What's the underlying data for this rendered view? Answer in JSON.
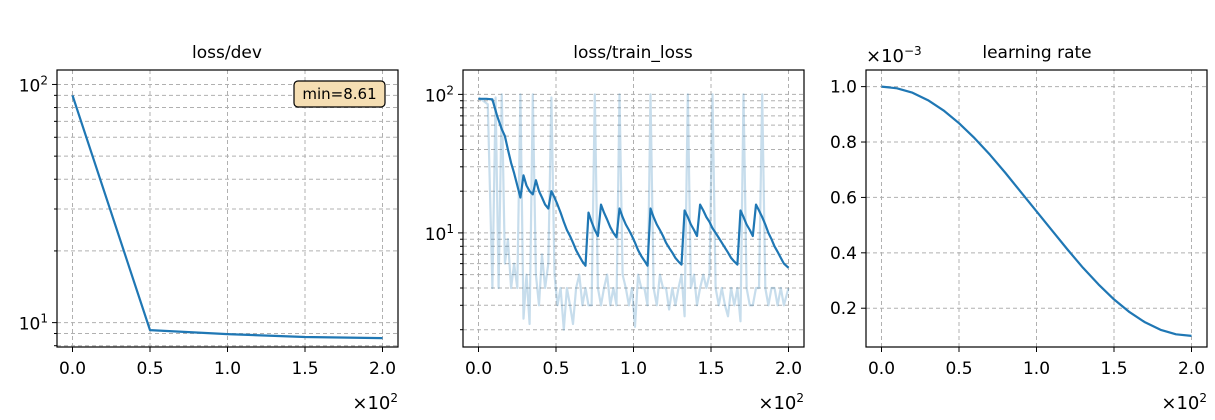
{
  "chart_data": [
    {
      "type": "line",
      "title": "loss/dev",
      "yscale": "log",
      "ylim": [
        7.9,
        115
      ],
      "xlim": [
        -10,
        210
      ],
      "x_multiplier": "×10",
      "x_multiplier_exp": "2",
      "x_ticks": [
        0,
        50,
        100,
        150,
        200
      ],
      "x_tick_labels": [
        "0.0",
        "0.5",
        "1.0",
        "1.5",
        "2.0"
      ],
      "y_major_ticks": [
        10,
        100
      ],
      "y_tick_labels_base": [
        "10",
        "10"
      ],
      "y_tick_labels_exp": [
        "1",
        "2"
      ],
      "y_minor_ticks": [
        8,
        9,
        20,
        30,
        40,
        50,
        60,
        70,
        80,
        90
      ],
      "grid": true,
      "annotation": "min=8.61",
      "annotation_position": "top-right",
      "series": [
        {
          "color": "#1f77b4",
          "x": [
            0,
            50,
            100,
            150,
            200
          ],
          "y": [
            90,
            9.3,
            8.95,
            8.7,
            8.61
          ]
        }
      ]
    },
    {
      "type": "line",
      "title": "loss/train_loss",
      "yscale": "log",
      "ylim": [
        1.5,
        150
      ],
      "xlim": [
        -10,
        210
      ],
      "x_multiplier": "×10",
      "x_multiplier_exp": "2",
      "x_ticks": [
        0,
        50,
        100,
        150,
        200
      ],
      "x_tick_labels": [
        "0.0",
        "0.5",
        "1.0",
        "1.5",
        "2.0"
      ],
      "y_major_ticks": [
        10,
        100
      ],
      "y_tick_labels_base": [
        "10",
        "10"
      ],
      "y_tick_labels_exp": [
        "1",
        "2"
      ],
      "y_minor_ticks": [
        2,
        3,
        4,
        5,
        6,
        7,
        8,
        9,
        20,
        30,
        40,
        50,
        60,
        70,
        80,
        90
      ],
      "grid": true,
      "series": [
        {
          "color": "#1f77b4",
          "opacity": 0.25,
          "x": [
            0,
            3,
            6,
            9,
            11,
            13,
            15,
            17,
            19,
            21,
            23,
            25,
            27,
            29,
            31,
            33,
            35,
            37,
            39,
            41,
            43,
            45,
            47,
            49,
            51,
            53,
            55,
            57,
            59,
            61,
            63,
            65,
            67,
            69,
            71,
            73,
            75,
            77,
            79,
            81,
            83,
            85,
            87,
            89,
            91,
            93,
            95,
            97,
            99,
            101,
            103,
            105,
            107,
            109,
            111,
            113,
            115,
            117,
            119,
            121,
            123,
            125,
            127,
            129,
            131,
            133,
            135,
            137,
            139,
            141,
            143,
            145,
            147,
            149,
            151,
            153,
            155,
            157,
            159,
            161,
            163,
            165,
            167,
            169,
            171,
            173,
            175,
            177,
            179,
            181,
            183,
            185,
            187,
            189,
            191,
            193,
            195,
            197,
            200
          ],
          "y": [
            95,
            90,
            85,
            4,
            95,
            4,
            100,
            6,
            9,
            4,
            6,
            4,
            100,
            2.4,
            5,
            2.2,
            100,
            5,
            3,
            7,
            4,
            6,
            95,
            5,
            3,
            4,
            2,
            4,
            3,
            2.2,
            4,
            5,
            3,
            4,
            3,
            3,
            100,
            4,
            3,
            4,
            5,
            3,
            4,
            3,
            100,
            5,
            4,
            3,
            4,
            2.1,
            5,
            4,
            4,
            3,
            100,
            4,
            3,
            5,
            4,
            4,
            2.8,
            4,
            3,
            4,
            5,
            2.5,
            100,
            4,
            5,
            3,
            4,
            5,
            4,
            5,
            100,
            4,
            3,
            4,
            3,
            2.5,
            4,
            3,
            4,
            2.3,
            100,
            4,
            3,
            3,
            4,
            4,
            100,
            4,
            3,
            4,
            4,
            3,
            4,
            3,
            4
          ]
        },
        {
          "color": "#1f77b4",
          "x": [
            0,
            5,
            9,
            12,
            15,
            17,
            19,
            21,
            23,
            25,
            27,
            29,
            31,
            33,
            35,
            37,
            39,
            41,
            43,
            45,
            47,
            49,
            51,
            53,
            55,
            57,
            59,
            61,
            63,
            65,
            67,
            69,
            71,
            73,
            75,
            77,
            79,
            81,
            83,
            85,
            87,
            89,
            91,
            93,
            95,
            97,
            99,
            101,
            103,
            105,
            107,
            109,
            111,
            113,
            115,
            117,
            119,
            121,
            123,
            125,
            127,
            129,
            131,
            133,
            135,
            137,
            139,
            141,
            143,
            145,
            147,
            149,
            151,
            153,
            155,
            157,
            159,
            161,
            163,
            165,
            167,
            169,
            171,
            173,
            175,
            177,
            179,
            181,
            183,
            185,
            187,
            189,
            191,
            193,
            195,
            197,
            200
          ],
          "y": [
            93,
            93,
            92,
            70,
            56,
            50,
            40,
            32,
            27,
            22,
            18,
            26,
            22,
            20,
            19,
            24,
            20,
            18,
            16,
            15,
            20,
            18,
            16,
            14,
            12,
            10.5,
            9.5,
            8.5,
            7.5,
            6.8,
            6.2,
            5.8,
            14,
            12,
            10.5,
            9.5,
            16,
            14,
            12.5,
            11,
            10,
            9.3,
            15,
            13,
            11.5,
            10.5,
            9.5,
            8.5,
            7.5,
            6.8,
            6.3,
            5.8,
            15,
            13,
            11.5,
            10.5,
            9.5,
            8.5,
            7.8,
            7.2,
            6.6,
            6.2,
            5.9,
            14.5,
            13,
            11.5,
            10.5,
            9.5,
            16,
            14.5,
            13,
            12,
            10.8,
            10,
            9.2,
            8.5,
            7.8,
            7.2,
            6.6,
            6.2,
            5.9,
            14.5,
            13,
            11.5,
            10.5,
            9.5,
            16,
            14.5,
            13,
            11.5,
            10,
            9,
            8,
            7.3,
            6.6,
            6,
            5.6
          ]
        }
      ]
    },
    {
      "type": "line",
      "title": "learning rate",
      "yscale": "linear",
      "ylim": [
        0.06,
        1.06
      ],
      "xlim": [
        -10,
        210
      ],
      "x_multiplier": "×10",
      "x_multiplier_exp": "2",
      "y_multiplier": "×10",
      "y_multiplier_exp": "−3",
      "x_ticks": [
        0,
        50,
        100,
        150,
        200
      ],
      "x_tick_labels": [
        "0.0",
        "0.5",
        "1.0",
        "1.5",
        "2.0"
      ],
      "y_ticks": [
        0.2,
        0.4,
        0.6,
        0.8,
        1.0
      ],
      "y_tick_labels": [
        "0.2",
        "0.4",
        "0.6",
        "0.8",
        "1.0"
      ],
      "grid": true,
      "series": [
        {
          "color": "#1f77b4",
          "x": [
            0,
            10,
            20,
            30,
            40,
            50,
            60,
            70,
            80,
            90,
            100,
            110,
            120,
            130,
            140,
            150,
            160,
            170,
            180,
            190,
            200
          ],
          "y": [
            1.0,
            0.994,
            0.978,
            0.951,
            0.914,
            0.868,
            0.814,
            0.754,
            0.688,
            0.619,
            0.55,
            0.481,
            0.412,
            0.346,
            0.286,
            0.232,
            0.186,
            0.149,
            0.122,
            0.106,
            0.1
          ]
        }
      ]
    }
  ]
}
